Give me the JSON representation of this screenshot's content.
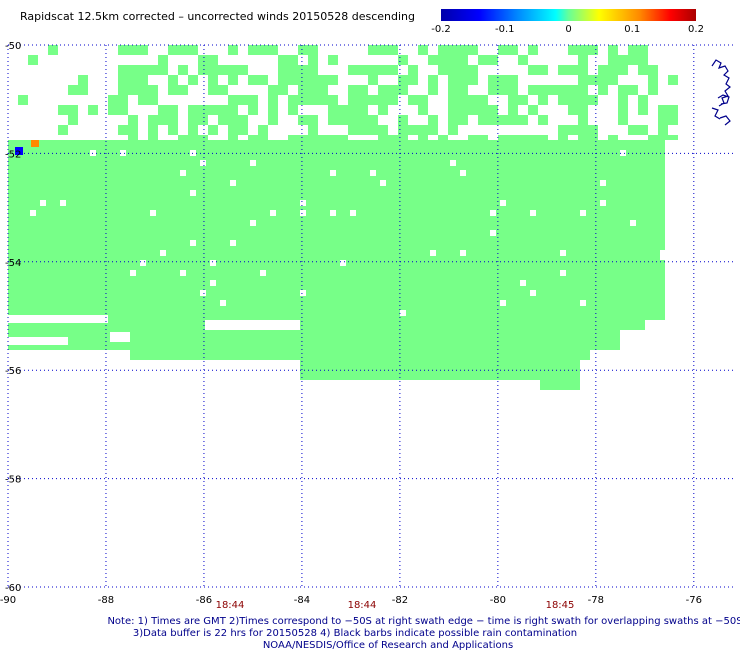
{
  "title": "Rapidscat 12.5km corrected – uncorrected winds 20150528 descending",
  "colorbar": {
    "ticks": [
      "-0.2",
      "-0.1",
      "0",
      "0.1",
      "0.2"
    ],
    "range": [
      -0.2,
      0.2
    ]
  },
  "map": {
    "lon_range": [
      -90,
      -75.2
    ],
    "lat_range": [
      -60,
      -50
    ],
    "lon_ticks": [
      "-90",
      "-88",
      "-86",
      "-84",
      "-82",
      "-80",
      "-78",
      "-76"
    ],
    "lat_ticks": [
      "-50",
      "-52",
      "-54",
      "-56",
      "-58",
      "-60"
    ],
    "grid": true,
    "fill_color": "#77ff88"
  },
  "swath_times": [
    "18:44",
    "18:44",
    "18:45"
  ],
  "notes": [
    "Note: 1) Times are GMT 2)Times correspond to −50S at right swath edge − time is right swath for overlapping swaths at −50S",
    "3)Data buffer is 22 hrs for 20150528 4) Black barbs indicate possible rain contamination",
    "NOAA/NESDIS/Office of Research and Applications"
  ],
  "colors": {
    "swath": "#77ff88",
    "grid": "#0000cc",
    "time_labels": "#8b0000",
    "notes": "#00008b",
    "coast": "#00008b",
    "outlier_low": "#0000ff",
    "outlier_high": "#ff8800"
  }
}
